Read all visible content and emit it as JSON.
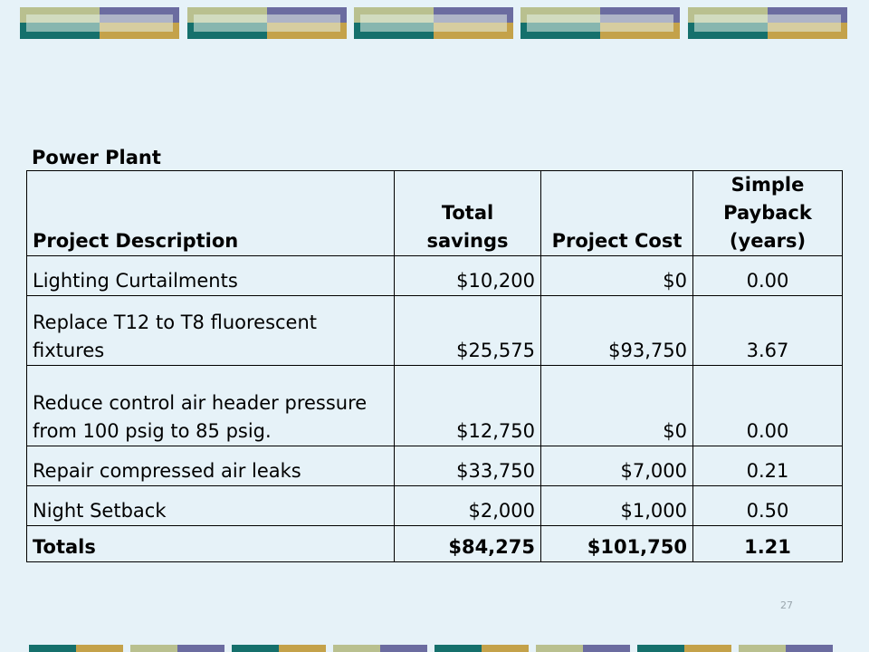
{
  "title": "Power Plant",
  "columns": [
    "Project Description",
    "Total savings",
    "Project Cost",
    "Simple Payback (years)"
  ],
  "rows": [
    {
      "description": "Lighting Curtailments",
      "savings": "$10,200",
      "cost": "$0",
      "payback": "0.00"
    },
    {
      "description": "Replace T12 to T8  fluorescent fixtures",
      "savings": "$25,575",
      "cost": "$93,750",
      "payback": "3.67"
    },
    {
      "description": "Reduce control air header pressure from 100 psig to 85 psig.",
      "savings": "$12,750",
      "cost": "$0",
      "payback": "0.00"
    },
    {
      "description": "Repair compressed air leaks",
      "savings": "$33,750",
      "cost": "$7,000",
      "payback": "0.21"
    },
    {
      "description": "Night Setback",
      "savings": "$2,000",
      "cost": "$1,000",
      "payback": "0.50"
    }
  ],
  "totals": {
    "label": "Totals",
    "savings": "$84,275",
    "cost": "$101,750",
    "payback": "1.21"
  },
  "page_number": "27",
  "colors": {
    "background": "#e6f2f8",
    "olive": "#b9c08f",
    "purple": "#6b6ca0",
    "teal": "#15706c",
    "gold": "#c4a24a"
  }
}
